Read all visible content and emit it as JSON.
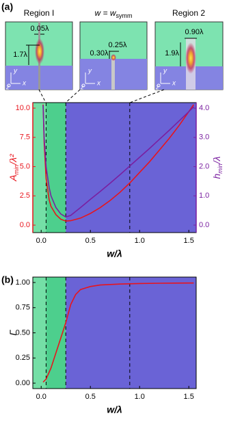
{
  "panel_labels": [
    "(a)",
    "(b)"
  ],
  "inset_axis_labels": [
    "y",
    "z",
    "x"
  ],
  "insets": [
    {
      "title": "Region I",
      "labels": [
        "0.05λ",
        "1.7λ"
      ]
    },
    {
      "title": "w = w",
      "title_sub": "symm",
      "labels": [
        "0.25λ",
        "0.30λ"
      ]
    },
    {
      "title": "Region 2",
      "labels": [
        "0.90λ",
        "1.9λ"
      ]
    }
  ],
  "chart_data": [
    {
      "type": "line",
      "xlabel": "w/λ",
      "ylabel": [
        "A",
        "min",
        "/λ²"
      ],
      "y2label": [
        "h",
        "min",
        "/λ"
      ],
      "xlim": [
        -0.085,
        1.575
      ],
      "xticks": [
        {
          "value": 0,
          "label": "0.0"
        },
        0.5,
        {
          "value": 1,
          "label": "1.0"
        },
        1.5
      ],
      "ylim": [
        -0.64,
        10.47
      ],
      "yticks": [
        {
          "value": 0,
          "label": "0.0"
        },
        2.5,
        {
          "value": 5,
          "label": "5.0"
        },
        7.5,
        {
          "value": 10,
          "label": "10.0"
        }
      ],
      "y2lim": [
        -0.257,
        4.19
      ],
      "y2ticks": [
        {
          "value": 0,
          "label": "0.0"
        },
        {
          "value": 1,
          "label": "1.0"
        },
        {
          "value": 2,
          "label": "2.0"
        },
        {
          "value": 3,
          "label": "3.0"
        },
        {
          "value": 4,
          "label": "4.0"
        }
      ],
      "region_edges": [
        0.05,
        0.25
      ],
      "region_colors": [
        "#74dfa6",
        "#4dcf8d",
        "#6a63d6"
      ],
      "vlines": [
        0.05,
        0.25,
        0.9
      ],
      "x": [
        0.02,
        0.03,
        0.05,
        0.08,
        0.1,
        0.15,
        0.2,
        0.25,
        0.3,
        0.4,
        0.5,
        0.6,
        0.7,
        0.8,
        0.9,
        1.0,
        1.1,
        1.2,
        1.3,
        1.4,
        1.5,
        1.55
      ],
      "series": [
        {
          "color": "#e8141c",
          "values": [
            10.3,
            7,
            4,
            2.2,
            1.6,
            0.9,
            0.5,
            0.35,
            0.38,
            0.6,
            1.0,
            1.5,
            2.1,
            2.8,
            3.6,
            4.5,
            5.4,
            6.4,
            7.4,
            8.5,
            9.7,
            10.3
          ]
        },
        {
          "color": "#7a1fa0",
          "axis": "y2",
          "values": [
            4.1,
            3.0,
            2.0,
            1.3,
            1.0,
            0.6,
            0.38,
            0.28,
            0.33,
            0.6,
            0.88,
            1.15,
            1.43,
            1.72,
            2.02,
            2.32,
            2.62,
            2.93,
            3.24,
            3.56,
            3.88,
            4.05
          ]
        }
      ]
    },
    {
      "type": "line",
      "xlabel": "w/λ",
      "ylabel": [
        "Γ"
      ],
      "xlim": [
        -0.085,
        1.575
      ],
      "xticks": [
        {
          "value": 0,
          "label": "0.0"
        },
        0.5,
        {
          "value": 1,
          "label": "1.0"
        },
        1.5
      ],
      "ylim": [
        -0.054,
        1.054
      ],
      "yticks": [
        {
          "value": 0,
          "label": "0.00"
        },
        0.25,
        {
          "value": 0.5,
          "label": "0.50"
        },
        0.75,
        {
          "value": 1,
          "label": "1.00"
        }
      ],
      "region_edges": [
        0.05,
        0.25
      ],
      "region_colors": [
        "#74dfa6",
        "#4dcf8d",
        "#6a63d6"
      ],
      "vlines": [
        0.05,
        0.25,
        0.9
      ],
      "x": [
        0.02,
        0.05,
        0.1,
        0.15,
        0.2,
        0.25,
        0.3,
        0.35,
        0.4,
        0.5,
        0.6,
        0.8,
        1.0,
        1.2,
        1.5,
        1.55
      ],
      "series": [
        {
          "color": "#e8141c",
          "values": [
            0.01,
            0.04,
            0.15,
            0.3,
            0.45,
            0.6,
            0.78,
            0.88,
            0.93,
            0.96,
            0.975,
            0.985,
            0.99,
            0.993,
            0.995,
            0.995
          ]
        }
      ]
    }
  ]
}
